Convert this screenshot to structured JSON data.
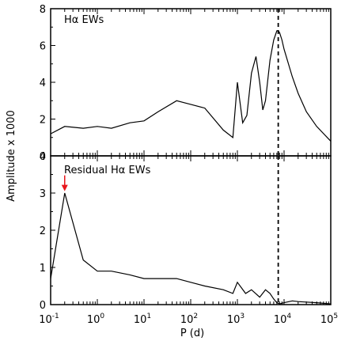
{
  "chart_data": [
    {
      "type": "line",
      "panel": "top",
      "title": "Hα EWs",
      "xlabel": "P (d)",
      "ylabel": "Amplitude x 1000",
      "xscale": "log",
      "xlim": [
        0.1,
        100000
      ],
      "ylim": [
        0,
        8
      ],
      "yticks": [
        "0",
        "2",
        "4",
        "6",
        "8"
      ],
      "grid": false,
      "reference_line_x": 7500,
      "series": [
        {
          "x": [
            0.1,
            0.2,
            0.5,
            1.0,
            2,
            5,
            10,
            20,
            50,
            100,
            200,
            500,
            800,
            1000,
            1300,
            1600,
            2000,
            2500,
            3000,
            3500,
            4000,
            5000,
            6000,
            7000,
            7500,
            8000,
            9000,
            10000,
            15000,
            20000,
            30000,
            50000,
            100000
          ],
          "y": [
            1.2,
            1.6,
            1.5,
            1.6,
            1.5,
            1.8,
            1.9,
            2.4,
            3.0,
            2.8,
            2.6,
            1.4,
            1.0,
            4.0,
            1.8,
            2.2,
            4.5,
            5.4,
            4.0,
            2.5,
            3.0,
            5.2,
            6.3,
            6.8,
            6.8,
            6.7,
            6.3,
            5.8,
            4.3,
            3.4,
            2.4,
            1.6,
            0.8
          ]
        }
      ]
    },
    {
      "type": "line",
      "panel": "bottom",
      "title": "Residual Hα EWs",
      "xlabel": "P (d)",
      "ylabel": "Amplitude x 1000",
      "xscale": "log",
      "xlim": [
        0.1,
        100000
      ],
      "ylim": [
        0,
        4
      ],
      "yticks": [
        "0",
        "1",
        "2",
        "3",
        "4"
      ],
      "xticks": [
        "10",
        "10",
        "10",
        "10",
        "10",
        "10",
        "10"
      ],
      "xtick_exponents": [
        "-1",
        "0",
        "1",
        "2",
        "3",
        "4",
        "5"
      ],
      "grid": false,
      "reference_line_x": 7500,
      "arrow_at_x": 0.2,
      "arrow_color": "#e8161b",
      "series": [
        {
          "x": [
            0.1,
            0.2,
            0.5,
            1,
            2,
            5,
            10,
            20,
            50,
            100,
            200,
            500,
            800,
            1000,
            1500,
            2000,
            3000,
            4000,
            5000,
            6000,
            7000,
            8000,
            10000,
            15000,
            20000,
            50000,
            100000
          ],
          "y": [
            0.7,
            3.0,
            1.2,
            0.9,
            0.9,
            0.8,
            0.7,
            0.7,
            0.7,
            0.6,
            0.5,
            0.4,
            0.3,
            0.6,
            0.3,
            0.4,
            0.2,
            0.4,
            0.3,
            0.15,
            0.05,
            0.02,
            0.05,
            0.1,
            0.08,
            0.05,
            0.02
          ]
        }
      ]
    }
  ]
}
